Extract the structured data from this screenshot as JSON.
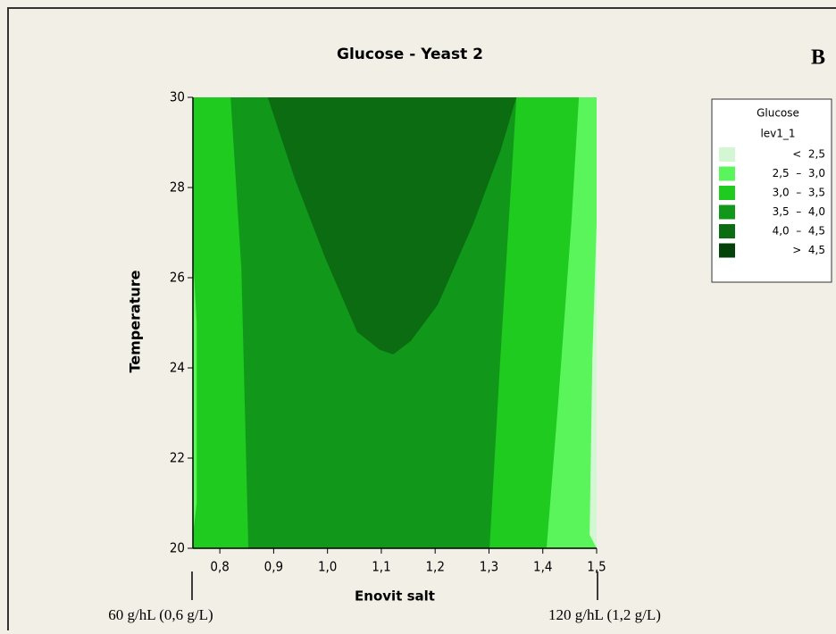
{
  "chart_data": {
    "type": "contour",
    "title": "Glucose - Yeast 2",
    "panel_label": "B",
    "x_label": "Enovit salt",
    "y_label": "Temperature",
    "annotations": [
      "60 g/hL (0,6 g/L)",
      "120 g/hL (1,2 g/L)"
    ],
    "xlim": [
      0.75,
      1.5
    ],
    "ylim": [
      20,
      30
    ],
    "xticks": [
      {
        "value": 0.8,
        "label": "0,8"
      },
      {
        "value": 0.9,
        "label": "0,9"
      },
      {
        "value": 1.0,
        "label": "1,0"
      },
      {
        "value": 1.1,
        "label": "1,1"
      },
      {
        "value": 1.2,
        "label": "1,2"
      },
      {
        "value": 1.3,
        "label": "1,3"
      },
      {
        "value": 1.4,
        "label": "1,4"
      },
      {
        "value": 1.5,
        "label": "1,5"
      }
    ],
    "yticks": [
      20,
      22,
      24,
      26,
      28,
      30
    ],
    "legend": {
      "title": "Glucose",
      "subtitle": "lev1_1",
      "entries": [
        {
          "label": "<  2,5",
          "color": "#d3f7d3"
        },
        {
          "label": "2,5  –  3,0",
          "color": "#5af55a"
        },
        {
          "label": "3,0  –  3,5",
          "color": "#1ecb1e"
        },
        {
          "label": "3,5  –  4,0",
          "color": "#11981a"
        },
        {
          "label": "4,0  –  4,5",
          "color": "#0b6c12"
        },
        {
          "label": ">  4,5",
          "color": "#04420a"
        }
      ]
    },
    "background_level": 2,
    "regions": [
      {
        "level": 3,
        "x": [
          0.82,
          0.84,
          0.853,
          1.301,
          1.321,
          1.351
        ],
        "y": [
          30,
          26.2,
          20,
          20,
          24.2,
          30
        ]
      },
      {
        "level": 4,
        "x": [
          0.889,
          0.939,
          0.997,
          1.055,
          1.097,
          1.122,
          1.155,
          1.205,
          1.271,
          1.321,
          1.351
        ],
        "y": [
          30,
          28.2,
          26.4,
          24.8,
          24.4,
          24.3,
          24.6,
          25.4,
          27.2,
          28.8,
          30
        ]
      },
      {
        "level": 1,
        "x": [
          1.467,
          1.453,
          1.429,
          1.407,
          1.5,
          1.5
        ],
        "y": [
          30,
          27.2,
          23.3,
          20,
          20,
          30
        ]
      },
      {
        "level": 1,
        "x": [
          0.75,
          0.757,
          0.757,
          0.75
        ],
        "y": [
          26.5,
          25,
          21,
          20.3
        ]
      },
      {
        "level": 0,
        "x": [
          1.5,
          1.492,
          1.487,
          1.5
        ],
        "y": [
          27.2,
          24.2,
          20.3,
          20
        ]
      }
    ]
  }
}
